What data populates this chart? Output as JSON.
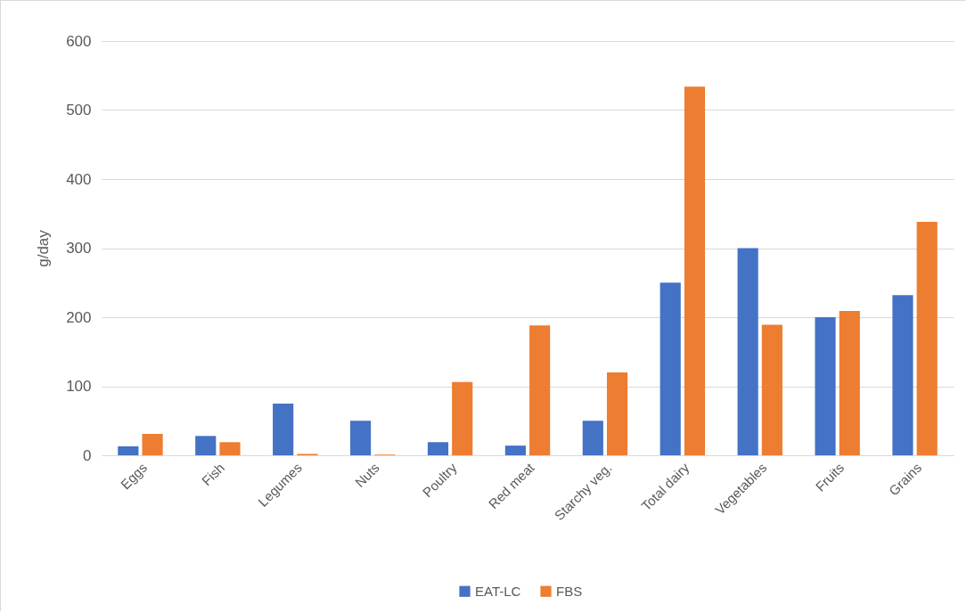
{
  "chart_data": {
    "type": "bar",
    "ylabel": "g/day",
    "categories": [
      "Eggs",
      "Fish",
      "Legumes",
      "Nuts",
      "Poultry",
      "Red meat",
      "Starchy veg.",
      "Total dairy",
      "Vegetables",
      "Fruits",
      "Grains"
    ],
    "series": [
      {
        "name": "EAT-LC",
        "color": "#4472c4",
        "values": [
          13,
          28,
          75,
          50,
          19,
          14,
          50,
          250,
          300,
          200,
          232
        ]
      },
      {
        "name": "FBS",
        "color": "#ed7d31",
        "values": [
          31,
          19,
          2,
          1,
          106,
          188,
          120,
          534,
          189,
          209,
          338
        ]
      }
    ],
    "ylim": [
      0,
      600
    ],
    "yticks": [
      0,
      100,
      200,
      300,
      400,
      500,
      600
    ],
    "grid": "y",
    "legend": "bottom"
  }
}
